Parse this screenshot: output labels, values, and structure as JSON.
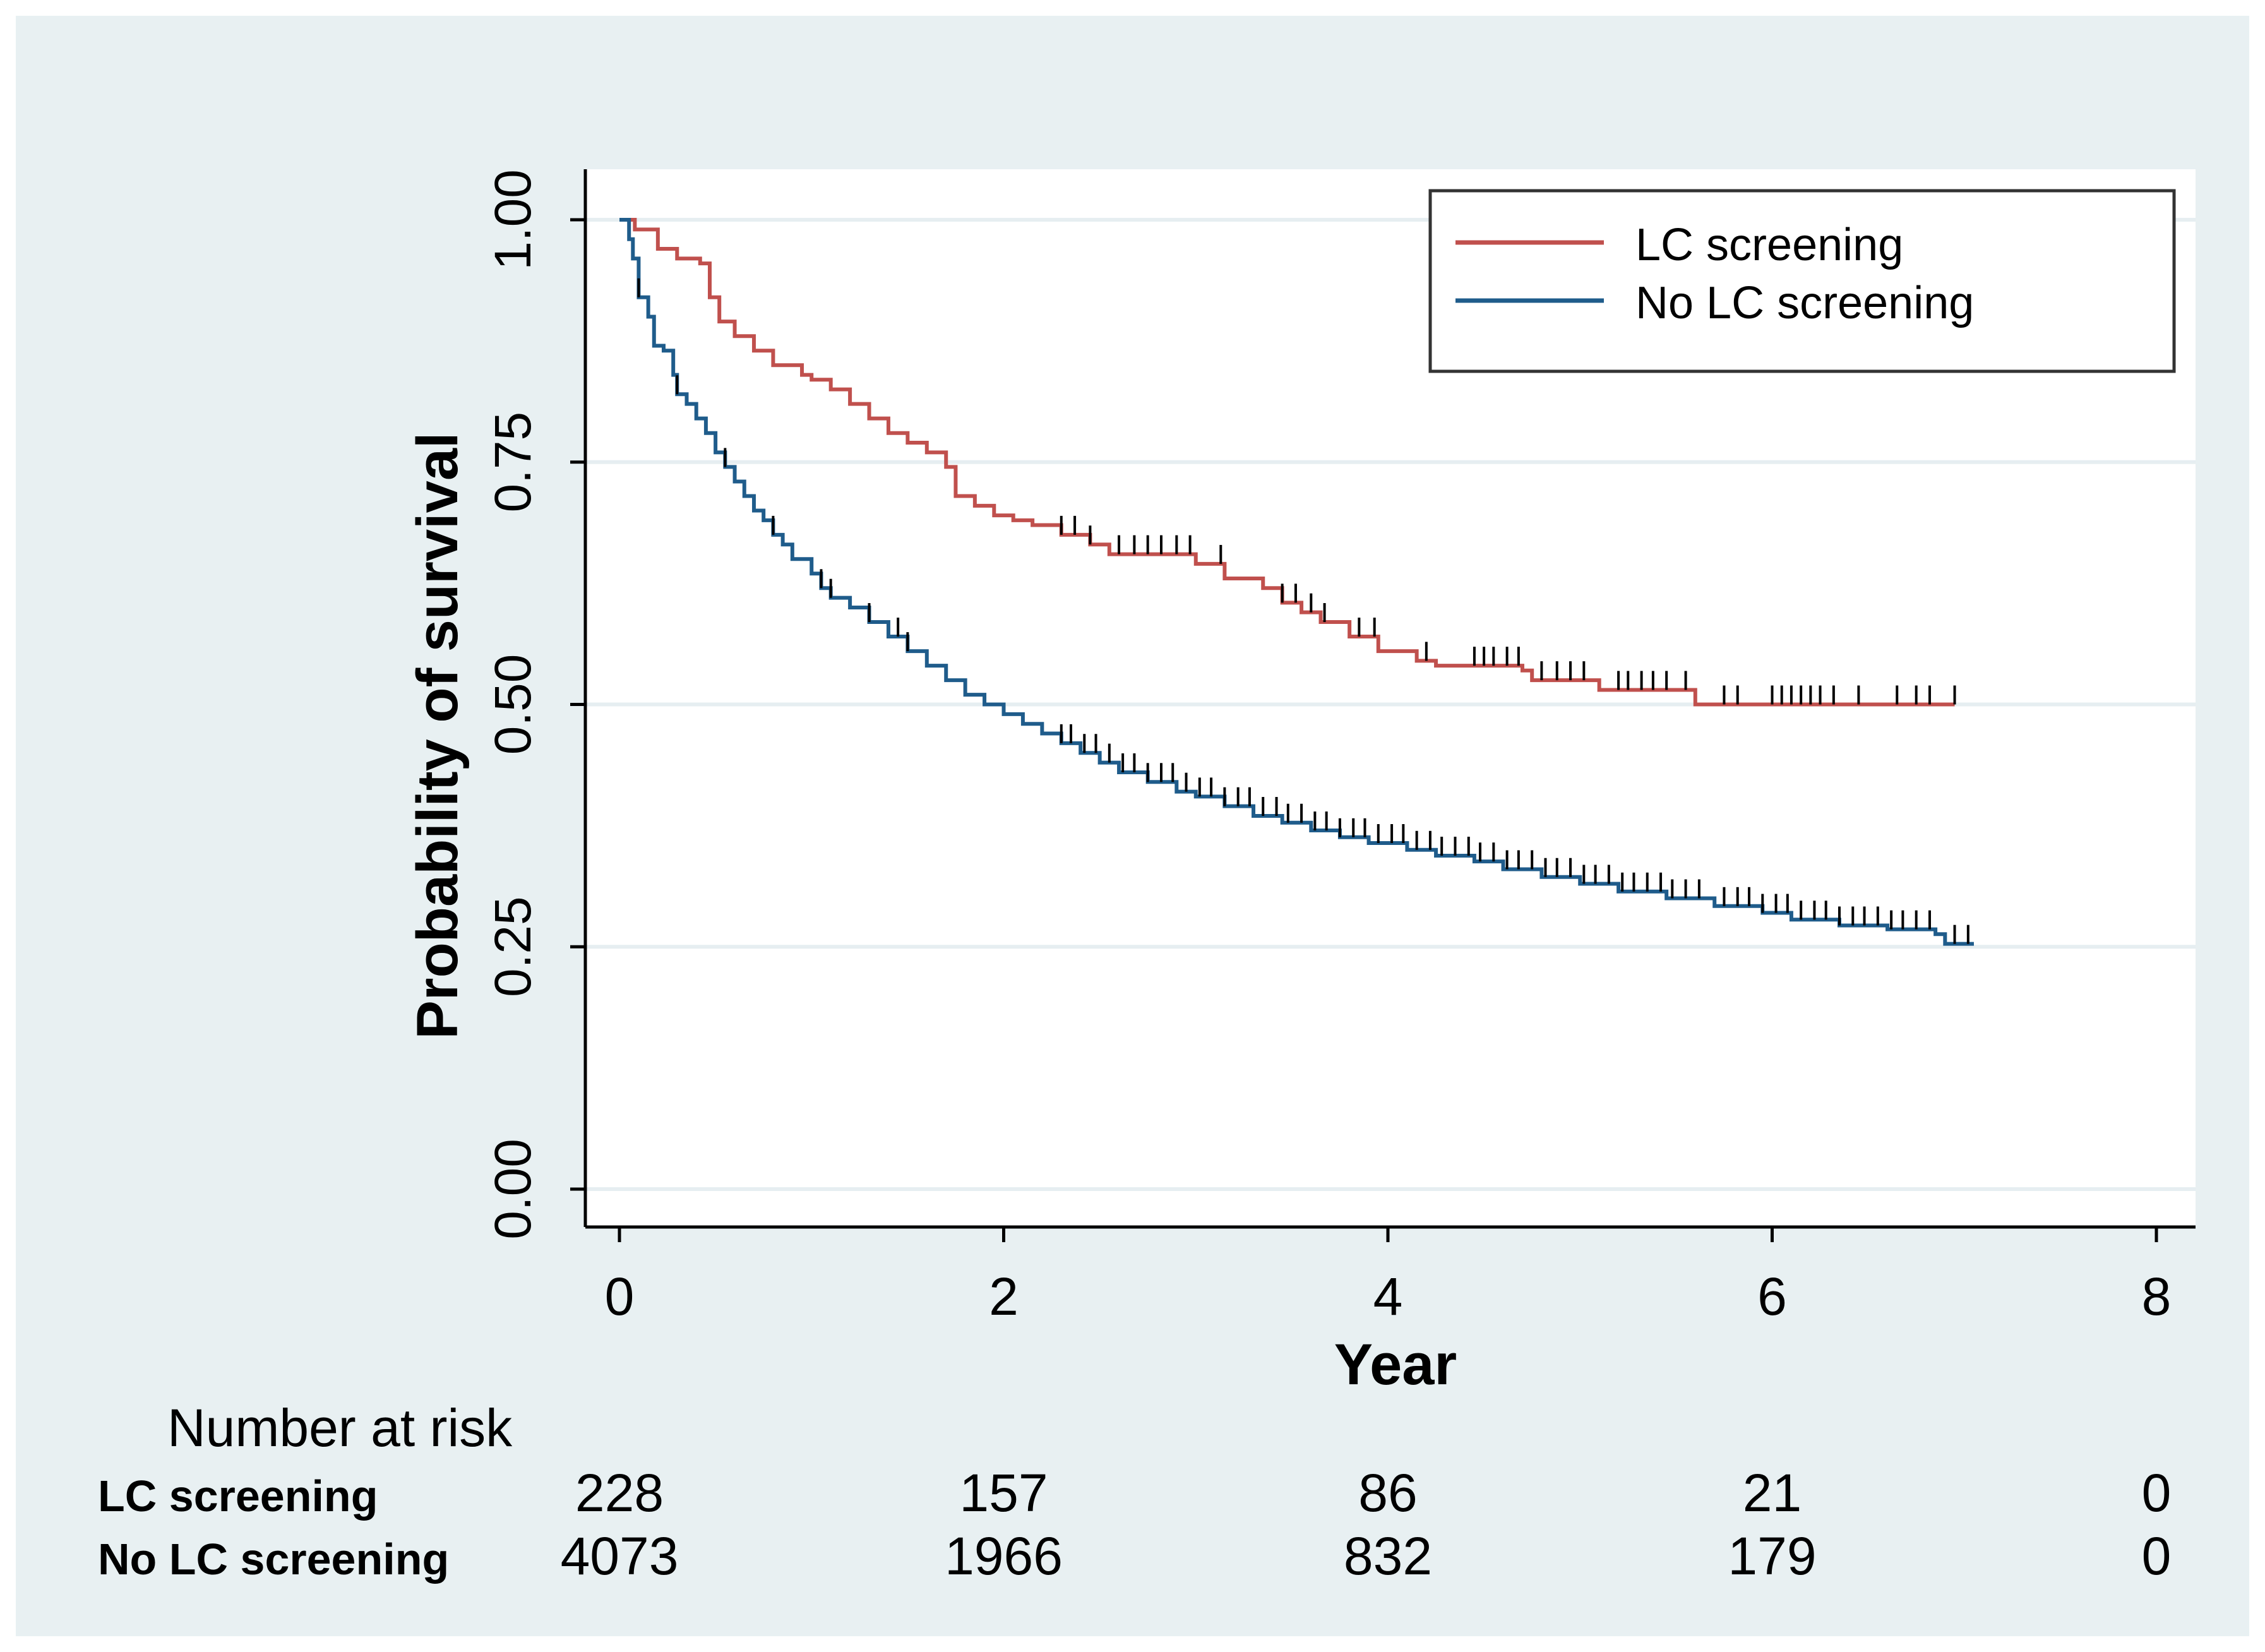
{
  "chart_data": {
    "type": "line",
    "subtype": "kaplan-meier",
    "title": "",
    "xlabel": "Year",
    "ylabel": "Probability of survival",
    "xlim": [
      0,
      8
    ],
    "ylim": [
      0,
      1
    ],
    "x_ticks": [
      0,
      2,
      4,
      6,
      8
    ],
    "x_tick_labels": [
      "0",
      "2",
      "4",
      "6",
      "8"
    ],
    "y_ticks": [
      0,
      0.25,
      0.5,
      0.75,
      1.0
    ],
    "y_tick_labels": [
      "0.00",
      "0.25",
      "0.50",
      "0.75",
      "1.00"
    ],
    "grid": true,
    "legend_position": "top-right",
    "series": [
      {
        "name": "LC screening",
        "color": "#c0504d",
        "steps": [
          [
            0,
            1.0
          ],
          [
            0.08,
            0.99
          ],
          [
            0.2,
            0.97
          ],
          [
            0.3,
            0.96
          ],
          [
            0.42,
            0.955
          ],
          [
            0.47,
            0.92
          ],
          [
            0.52,
            0.895
          ],
          [
            0.6,
            0.88
          ],
          [
            0.7,
            0.865
          ],
          [
            0.8,
            0.85
          ],
          [
            0.95,
            0.84
          ],
          [
            1.0,
            0.835
          ],
          [
            1.1,
            0.825
          ],
          [
            1.2,
            0.81
          ],
          [
            1.3,
            0.795
          ],
          [
            1.4,
            0.78
          ],
          [
            1.5,
            0.77
          ],
          [
            1.6,
            0.76
          ],
          [
            1.7,
            0.745
          ],
          [
            1.75,
            0.715
          ],
          [
            1.85,
            0.705
          ],
          [
            1.95,
            0.695
          ],
          [
            2.05,
            0.69
          ],
          [
            2.15,
            0.685
          ],
          [
            2.3,
            0.675
          ],
          [
            2.45,
            0.665
          ],
          [
            2.55,
            0.655
          ],
          [
            3.0,
            0.645
          ],
          [
            3.15,
            0.63
          ],
          [
            3.35,
            0.62
          ],
          [
            3.45,
            0.605
          ],
          [
            3.55,
            0.595
          ],
          [
            3.65,
            0.585
          ],
          [
            3.8,
            0.57
          ],
          [
            3.95,
            0.555
          ],
          [
            4.15,
            0.545
          ],
          [
            4.25,
            0.54
          ],
          [
            4.7,
            0.535
          ],
          [
            4.75,
            0.525
          ],
          [
            5.1,
            0.515
          ],
          [
            5.6,
            0.5
          ],
          [
            6.95,
            0.5
          ]
        ],
        "censor_times": [
          2.3,
          2.37,
          2.45,
          2.6,
          2.68,
          2.75,
          2.82,
          2.9,
          2.97,
          3.13,
          3.45,
          3.52,
          3.6,
          3.67,
          3.85,
          3.93,
          4.2,
          4.45,
          4.5,
          4.55,
          4.62,
          4.68,
          4.8,
          4.88,
          4.95,
          5.02,
          5.2,
          5.25,
          5.32,
          5.38,
          5.45,
          5.55,
          5.75,
          5.82,
          6.0,
          6.05,
          6.1,
          6.15,
          6.2,
          6.25,
          6.32,
          6.45,
          6.65,
          6.75,
          6.82,
          6.95
        ]
      },
      {
        "name": "No LC screening",
        "color": "#1f5c8b",
        "steps": [
          [
            0,
            1.0
          ],
          [
            0.05,
            0.98
          ],
          [
            0.07,
            0.96
          ],
          [
            0.1,
            0.92
          ],
          [
            0.15,
            0.9
          ],
          [
            0.18,
            0.87
          ],
          [
            0.23,
            0.865
          ],
          [
            0.28,
            0.84
          ],
          [
            0.3,
            0.82
          ],
          [
            0.35,
            0.81
          ],
          [
            0.4,
            0.795
          ],
          [
            0.45,
            0.78
          ],
          [
            0.5,
            0.76
          ],
          [
            0.55,
            0.745
          ],
          [
            0.6,
            0.73
          ],
          [
            0.65,
            0.715
          ],
          [
            0.7,
            0.7
          ],
          [
            0.75,
            0.69
          ],
          [
            0.8,
            0.675
          ],
          [
            0.85,
            0.665
          ],
          [
            0.9,
            0.65
          ],
          [
            1.0,
            0.635
          ],
          [
            1.05,
            0.62
          ],
          [
            1.1,
            0.61
          ],
          [
            1.2,
            0.6
          ],
          [
            1.3,
            0.585
          ],
          [
            1.4,
            0.57
          ],
          [
            1.5,
            0.555
          ],
          [
            1.6,
            0.54
          ],
          [
            1.7,
            0.525
          ],
          [
            1.8,
            0.51
          ],
          [
            1.9,
            0.5
          ],
          [
            2.0,
            0.49
          ],
          [
            2.1,
            0.48
          ],
          [
            2.2,
            0.47
          ],
          [
            2.3,
            0.46
          ],
          [
            2.4,
            0.45
          ],
          [
            2.5,
            0.44
          ],
          [
            2.6,
            0.43
          ],
          [
            2.75,
            0.42
          ],
          [
            2.9,
            0.41
          ],
          [
            3.0,
            0.405
          ],
          [
            3.15,
            0.395
          ],
          [
            3.3,
            0.385
          ],
          [
            3.45,
            0.378
          ],
          [
            3.6,
            0.37
          ],
          [
            3.75,
            0.363
          ],
          [
            3.9,
            0.357
          ],
          [
            4.1,
            0.35
          ],
          [
            4.25,
            0.344
          ],
          [
            4.45,
            0.338
          ],
          [
            4.6,
            0.33
          ],
          [
            4.8,
            0.322
          ],
          [
            5.0,
            0.315
          ],
          [
            5.2,
            0.307
          ],
          [
            5.45,
            0.3
          ],
          [
            5.7,
            0.292
          ],
          [
            5.95,
            0.285
          ],
          [
            6.1,
            0.278
          ],
          [
            6.35,
            0.272
          ],
          [
            6.6,
            0.268
          ],
          [
            6.85,
            0.263
          ],
          [
            6.9,
            0.253
          ],
          [
            7.05,
            0.253
          ]
        ],
        "censor_times": [
          0.1,
          0.3,
          0.55,
          0.8,
          1.05,
          1.1,
          1.3,
          1.45,
          1.5,
          2.3,
          2.35,
          2.42,
          2.48,
          2.55,
          2.62,
          2.68,
          2.75,
          2.82,
          2.88,
          2.95,
          3.02,
          3.08,
          3.15,
          3.22,
          3.28,
          3.35,
          3.42,
          3.48,
          3.55,
          3.62,
          3.68,
          3.75,
          3.82,
          3.88,
          3.95,
          4.02,
          4.08,
          4.15,
          4.22,
          4.28,
          4.35,
          4.42,
          4.48,
          4.55,
          4.62,
          4.68,
          4.75,
          4.82,
          4.88,
          4.95,
          5.02,
          5.08,
          5.15,
          5.22,
          5.28,
          5.35,
          5.42,
          5.48,
          5.55,
          5.62,
          5.75,
          5.82,
          5.88,
          5.95,
          6.02,
          6.08,
          6.15,
          6.22,
          6.28,
          6.35,
          6.42,
          6.48,
          6.55,
          6.62,
          6.68,
          6.75,
          6.82,
          6.95,
          7.02
        ]
      }
    ],
    "risk_table": {
      "title": "Number at risk",
      "times": [
        0,
        2,
        4,
        6,
        8
      ],
      "rows": [
        {
          "label": "LC screening",
          "values": [
            "228",
            "157",
            "86",
            "21",
            "0"
          ]
        },
        {
          "label": "No LC screening",
          "values": [
            "4073",
            "1966",
            "832",
            "179",
            "0"
          ]
        }
      ]
    }
  },
  "colors": {
    "outer_background": "#e8f0f2",
    "plot_background": "#ffffff",
    "grid": "#e6eef1",
    "axis": "#000000",
    "censor_mark": "#000000"
  }
}
